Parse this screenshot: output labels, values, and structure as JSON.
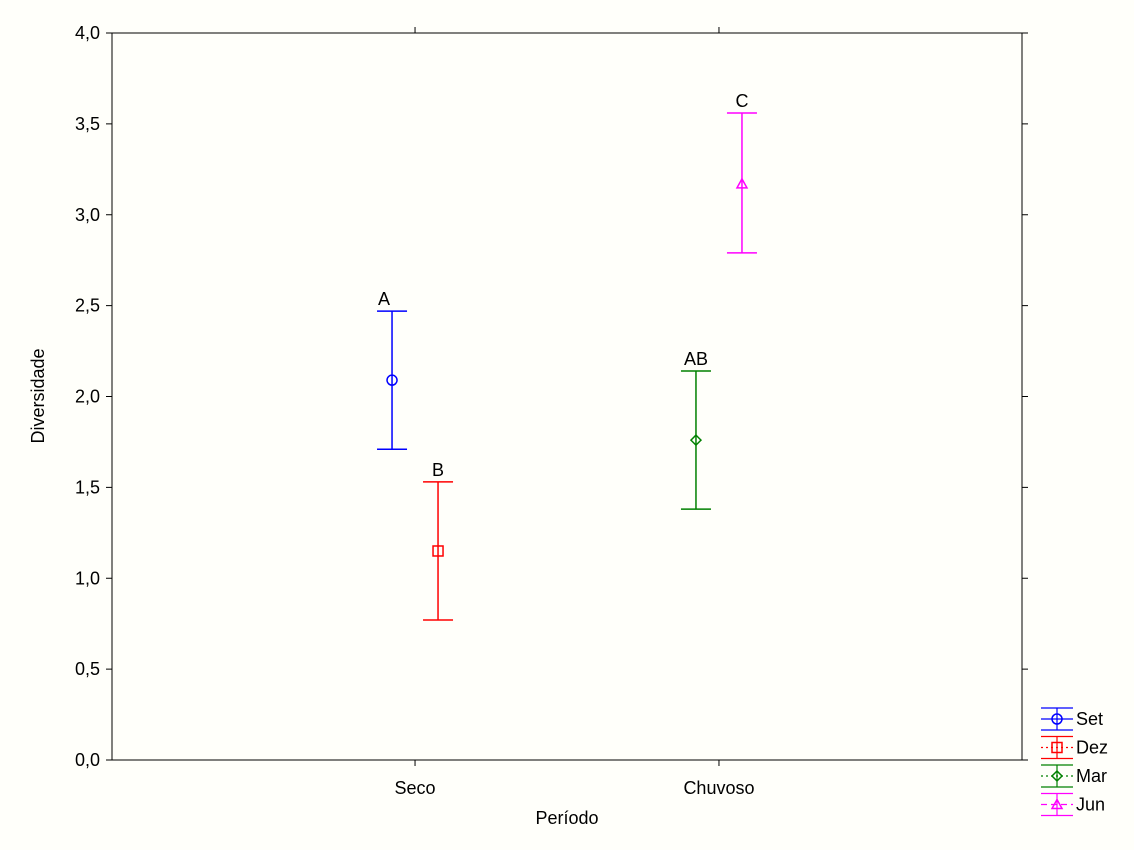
{
  "chart_data": {
    "type": "scatter",
    "xlabel": "Período",
    "ylabel": "Diversidade",
    "categories": [
      "Seco",
      "Chuvoso"
    ],
    "ylim": [
      0,
      4
    ],
    "yticks": [
      "0,0",
      "0,5",
      "1,0",
      "1,5",
      "2,0",
      "2,5",
      "3,0",
      "3,5",
      "4,0"
    ],
    "grid": false,
    "legend_position": "bottom-right, outside plot",
    "series": [
      {
        "name": "Set",
        "category": "Seco",
        "mean": 2.09,
        "lower": 1.71,
        "upper": 2.47,
        "label": "A",
        "color": "#0000ff",
        "marker": "circle",
        "line": "solid"
      },
      {
        "name": "Dez",
        "category": "Seco",
        "mean": 1.15,
        "lower": 0.77,
        "upper": 1.53,
        "label": "B",
        "color": "#ff0000",
        "marker": "square",
        "line": "dotted"
      },
      {
        "name": "Mar",
        "category": "Chuvoso",
        "mean": 1.76,
        "lower": 1.38,
        "upper": 2.14,
        "label": "AB",
        "color": "#008000",
        "marker": "diamond",
        "line": "dotted"
      },
      {
        "name": "Jun",
        "category": "Chuvoso",
        "mean": 3.17,
        "lower": 2.79,
        "upper": 3.56,
        "label": "C",
        "color": "#ff00ff",
        "marker": "triangle",
        "line": "dashed"
      }
    ]
  }
}
